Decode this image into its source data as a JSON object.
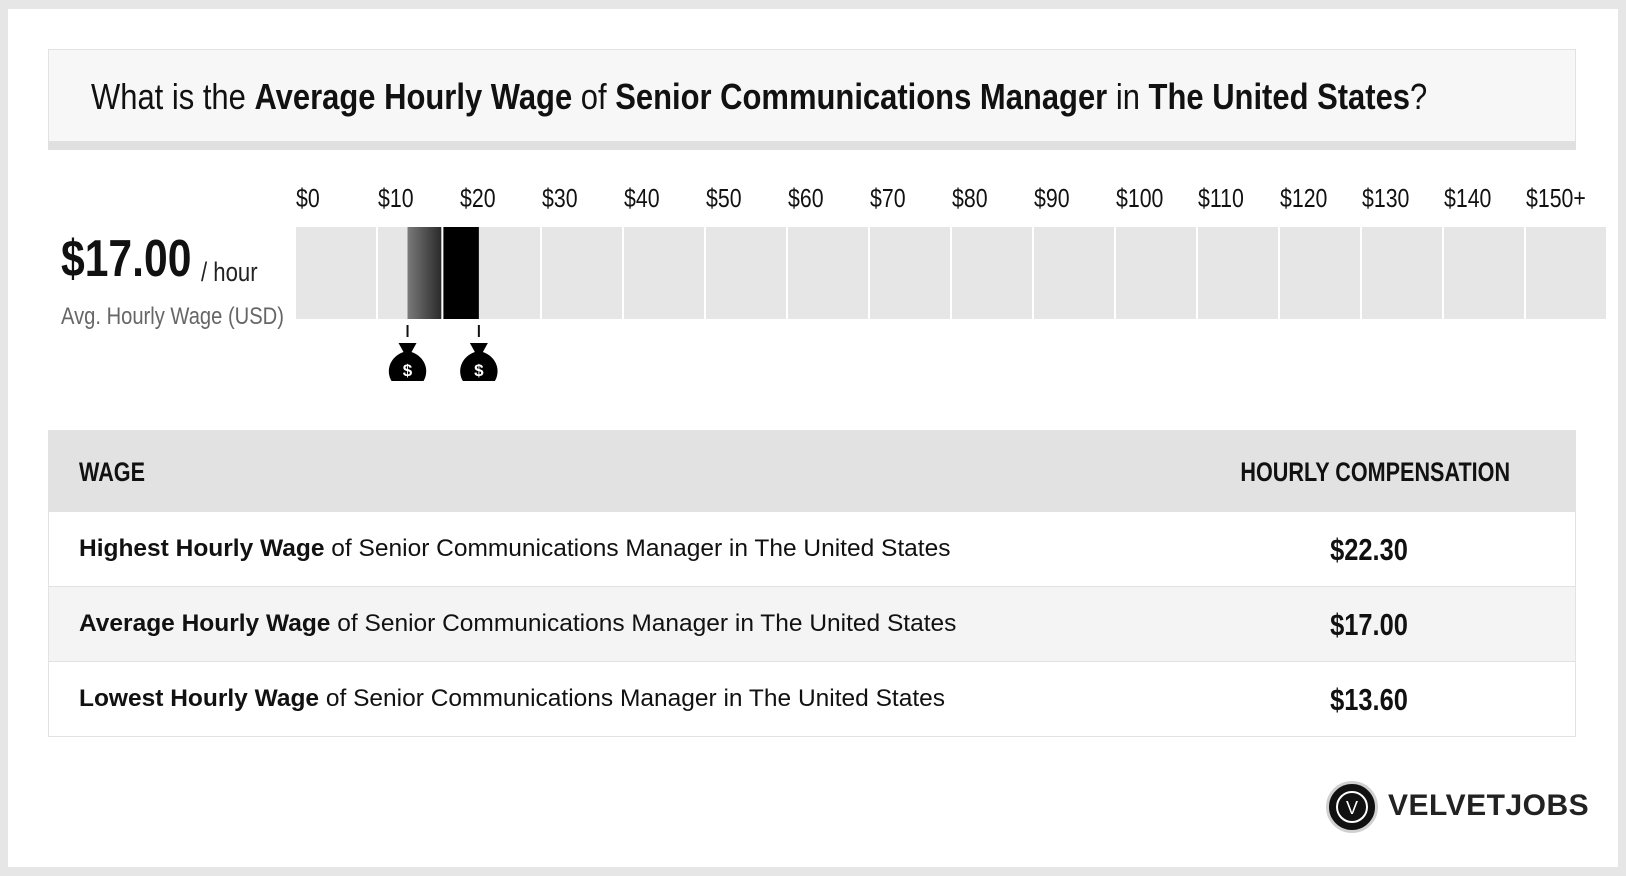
{
  "title": {
    "prefix": "What is the ",
    "bold1": "Average Hourly Wage",
    "mid1": " of ",
    "bold2": "Senior Communications Manager",
    "mid2": " in ",
    "bold3": "The United States",
    "suffix": "?"
  },
  "summary": {
    "wage": "$17.00",
    "unit": "/ hour",
    "caption": "Avg. Hourly Wage (USD)"
  },
  "chart_data": {
    "type": "bar",
    "tick_labels": [
      "$0",
      "$10",
      "$20",
      "$30",
      "$40",
      "$50",
      "$60",
      "$70",
      "$80",
      "$90",
      "$100",
      "$110",
      "$120",
      "$130",
      "$140",
      "$150+"
    ],
    "range": {
      "low": 13.6,
      "average": 17.0,
      "high": 22.3
    },
    "xlim": [
      0,
      150
    ],
    "markers": [
      {
        "label": "$",
        "icon": "money-bag-icon",
        "value": 13.6
      },
      {
        "label": "$",
        "icon": "money-bag-icon",
        "value": 22.3
      }
    ]
  },
  "table": {
    "headers": {
      "wage": "WAGE",
      "comp": "HOURLY COMPENSATION"
    },
    "rows": [
      {
        "bold": "Highest Hourly Wage",
        "rest": " of Senior Communications Manager in The United States",
        "value": "$22.30"
      },
      {
        "bold": "Average Hourly Wage",
        "rest": " of Senior Communications Manager in The United States",
        "value": "$17.00"
      },
      {
        "bold": "Lowest Hourly Wage",
        "rest": " of Senior Communications Manager in The United States",
        "value": "$13.60"
      }
    ]
  },
  "brand": {
    "logo_letter": "V",
    "name": "VELVETJOBS"
  },
  "colors": {
    "track": "#e6e6e6",
    "range_start": "#7a7a7a",
    "range_mid": "#333333",
    "range_high": "#000000"
  }
}
